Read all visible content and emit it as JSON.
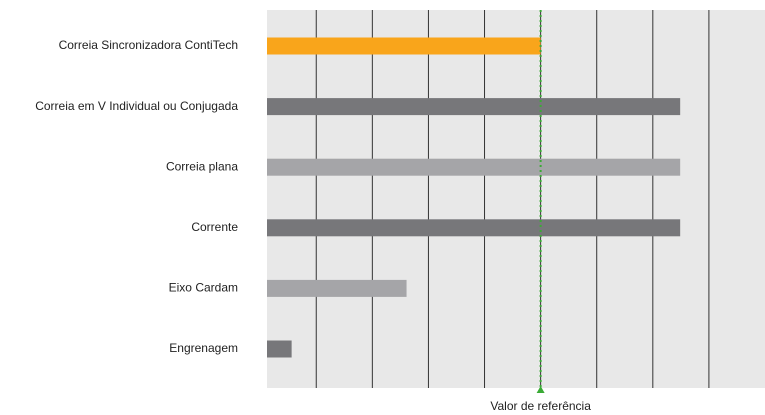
{
  "chart_data": {
    "type": "barh",
    "categories": [
      "Correia Sincronizadora ContiTech",
      "Correia em V Individual ou Conjugada",
      "Correia plana",
      "Corrente",
      "Eixo Cardam",
      "Engrenagem"
    ],
    "values": [
      100,
      151,
      151,
      151,
      51,
      9
    ],
    "colors": [
      "#f9a51b",
      "#77777a",
      "#a5a5a8",
      "#77777a",
      "#a5a5a8",
      "#77777a"
    ],
    "xlim": [
      0,
      182
    ],
    "xticks": [
      18,
      38.5,
      59,
      79.5,
      100,
      120.5,
      141,
      161.5
    ],
    "grid": true,
    "reference": {
      "value": 100,
      "label": "Valor de referência",
      "color": "#3aaa35"
    }
  }
}
